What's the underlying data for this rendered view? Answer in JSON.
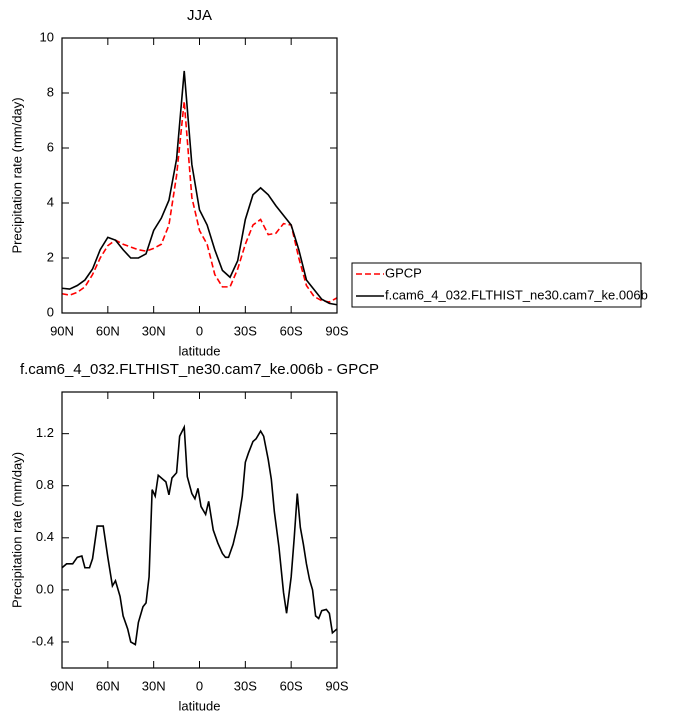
{
  "chart_data": [
    {
      "type": "line",
      "title": "JJA",
      "x_label": "latitude",
      "y_label": "Precipitation rate (mm/day)",
      "xlim": [
        90,
        -90
      ],
      "ylim": [
        0,
        10
      ],
      "xticks": [
        {
          "value": 90,
          "label": "90N"
        },
        {
          "value": 60,
          "label": "60N"
        },
        {
          "value": 30,
          "label": "30N"
        },
        0,
        {
          "value": -30,
          "label": "30S"
        },
        {
          "value": -60,
          "label": "60S"
        },
        {
          "value": -90,
          "label": "90S"
        }
      ],
      "yticks": [
        0,
        2,
        4,
        6,
        8,
        10
      ],
      "legend_position": "right",
      "x": [
        90,
        85,
        80,
        75,
        70,
        65,
        60,
        55,
        50,
        45,
        40,
        35,
        30,
        25,
        20,
        15,
        10,
        5,
        0,
        -5,
        -10,
        -15,
        -20,
        -25,
        -30,
        -35,
        -40,
        -45,
        -50,
        -55,
        -60,
        -65,
        -70,
        -75,
        -80,
        -85,
        -90
      ],
      "series": [
        {
          "name": "GPCP",
          "color": "#ff0000",
          "line_style": "dashed",
          "values": [
            0.7,
            0.65,
            0.75,
            0.95,
            1.4,
            2.0,
            2.45,
            2.65,
            2.5,
            2.4,
            2.3,
            2.25,
            2.35,
            2.5,
            3.2,
            5.0,
            7.7,
            4.2,
            3.0,
            2.5,
            1.4,
            0.95,
            0.95,
            1.6,
            2.5,
            3.2,
            3.4,
            2.85,
            2.9,
            3.25,
            3.2,
            2.0,
            1.0,
            0.6,
            0.45,
            0.4,
            0.55
          ]
        },
        {
          "name": "f.cam6_4_032.FLTHIST_ne30.cam7_ke.006b",
          "color": "#000000",
          "line_style": "solid",
          "values": [
            0.9,
            0.87,
            1.0,
            1.2,
            1.6,
            2.3,
            2.75,
            2.65,
            2.3,
            2.0,
            2.0,
            2.15,
            3.0,
            3.45,
            4.1,
            5.6,
            8.8,
            5.4,
            3.75,
            3.2,
            2.3,
            1.55,
            1.3,
            1.9,
            3.4,
            4.3,
            4.55,
            4.3,
            3.9,
            3.55,
            3.2,
            2.3,
            1.2,
            0.85,
            0.5,
            0.35,
            0.3
          ]
        }
      ]
    },
    {
      "type": "line",
      "title": "f.cam6_4_032.FLTHIST_ne30.cam7_ke.006b - GPCP",
      "x_label": "latitude",
      "y_label": "Precipitation rate (mm/day)",
      "xlim": [
        90,
        -90
      ],
      "ylim": [
        -0.6,
        1.52
      ],
      "xticks": [
        {
          "value": 90,
          "label": "90N"
        },
        {
          "value": 60,
          "label": "60N"
        },
        {
          "value": 30,
          "label": "30N"
        },
        0,
        {
          "value": -30,
          "label": "30S"
        },
        {
          "value": -60,
          "label": "60S"
        },
        {
          "value": -90,
          "label": "90S"
        }
      ],
      "yticks": [
        -0.4,
        {
          "value": 0,
          "label": "0.0"
        },
        0.4,
        0.8,
        1.2
      ],
      "x": [
        90,
        87,
        83,
        80,
        77,
        75,
        72,
        70,
        67,
        63,
        60,
        57,
        55,
        52,
        50,
        47,
        45,
        42,
        40,
        37,
        35,
        33,
        31,
        29,
        27,
        24,
        22,
        20,
        18,
        15,
        13,
        10,
        8,
        5,
        3,
        1,
        -1,
        -4,
        -6,
        -9,
        -12,
        -15,
        -17,
        -19,
        -22,
        -25,
        -28,
        -30,
        -32,
        -35,
        -37,
        -40,
        -42,
        -45,
        -47,
        -49,
        -52,
        -55,
        -57,
        -60,
        -62,
        -64,
        -66,
        -68,
        -70,
        -72,
        -74,
        -76,
        -78,
        -80,
        -83,
        -85,
        -87,
        -90
      ],
      "series": [
        {
          "color": "#000000",
          "line_style": "solid",
          "values": [
            0.17,
            0.2,
            0.2,
            0.25,
            0.26,
            0.17,
            0.17,
            0.24,
            0.49,
            0.49,
            0.25,
            0.03,
            0.07,
            -0.05,
            -0.2,
            -0.3,
            -0.4,
            -0.42,
            -0.25,
            -0.13,
            -0.1,
            0.1,
            0.77,
            0.72,
            0.88,
            0.85,
            0.83,
            0.73,
            0.86,
            0.9,
            1.18,
            1.25,
            0.87,
            0.74,
            0.7,
            0.78,
            0.64,
            0.58,
            0.68,
            0.46,
            0.36,
            0.28,
            0.25,
            0.25,
            0.35,
            0.5,
            0.72,
            0.98,
            1.05,
            1.14,
            1.16,
            1.22,
            1.18,
            1.0,
            0.85,
            0.6,
            0.33,
            -0.02,
            -0.18,
            0.1,
            0.4,
            0.74,
            0.48,
            0.35,
            0.2,
            0.08,
            0.0,
            -0.2,
            -0.22,
            -0.16,
            -0.15,
            -0.18,
            -0.33,
            -0.3
          ]
        }
      ]
    }
  ]
}
